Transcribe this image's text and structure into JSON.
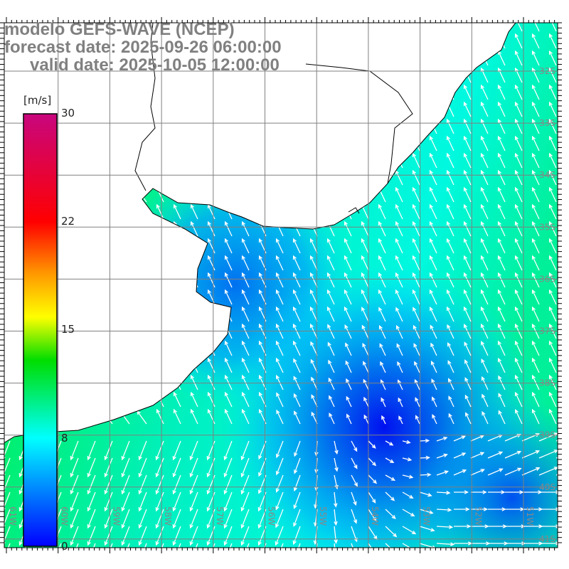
{
  "title": {
    "line1": "modelo GEFS-WAVE (NCEP)",
    "line2": "forecast date: 2025-09-26 06:00:00",
    "line3": "valid date: 2025-10-05 12:00:00"
  },
  "colorbar": {
    "unit": "[m/s]",
    "ticks": [
      "30",
      "22",
      "15",
      "8",
      "0"
    ],
    "colors": [
      "#c8067e",
      "#ff0000",
      "#ff9900",
      "#ffff00",
      "#00dd00",
      "#00ffff",
      "#0000ff"
    ]
  },
  "axes": {
    "lon_labels": [
      "61W",
      "60W",
      "59W",
      "58W",
      "57W",
      "56W",
      "55W",
      "54W",
      "53W",
      "52W",
      "51W"
    ],
    "lat_labels": [
      "32S",
      "33S",
      "34S",
      "35S",
      "36S",
      "37S",
      "38S",
      "39S",
      "40S",
      "41S"
    ]
  }
}
